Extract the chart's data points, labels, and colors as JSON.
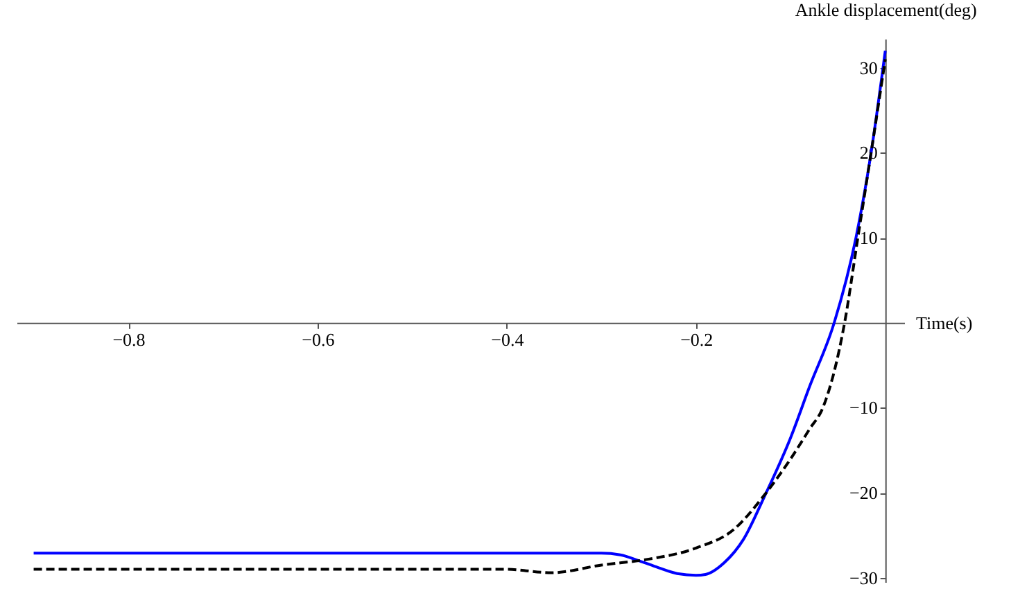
{
  "chart_data": {
    "type": "line",
    "xlabel": "Time(s)",
    "ylabel": "Ankle displacement(deg)",
    "xlim": [
      -0.918,
      0.02
    ],
    "ylim": [
      -30.5,
      33.4
    ],
    "xticks": [
      -0.8,
      -0.6,
      -0.4,
      -0.2
    ],
    "yticks": [
      -30,
      -20,
      -10,
      10,
      20,
      30
    ],
    "grid": false,
    "series": [
      {
        "color": "#0000ff",
        "line_style": "solid",
        "x": [
          -0.9,
          -0.3,
          -0.28,
          -0.26,
          -0.24,
          -0.22,
          -0.2,
          -0.19,
          -0.17,
          -0.15,
          -0.128,
          -0.1,
          -0.08,
          -0.054,
          -0.031,
          -0.015,
          0
        ],
        "values": [
          -27.1,
          -27.1,
          -27.3,
          -28.0,
          -28.8,
          -29.5,
          -29.7,
          -29.6,
          -28.2,
          -25.5,
          -20.5,
          -13.5,
          -7.5,
          0,
          10,
          20,
          32
        ]
      },
      {
        "color": "#000000",
        "line_style": "dashed",
        "x": [
          -0.9,
          -0.4,
          -0.353,
          -0.3,
          -0.25,
          -0.2,
          -0.16,
          -0.128,
          -0.1,
          -0.08,
          -0.066,
          -0.043,
          -0.029,
          -0.015,
          0
        ],
        "values": [
          -29,
          -29,
          -29.4,
          -28.5,
          -27.8,
          -26.5,
          -24.3,
          -20.3,
          -16,
          -12.5,
          -10,
          0,
          10,
          20,
          31
        ]
      }
    ]
  }
}
